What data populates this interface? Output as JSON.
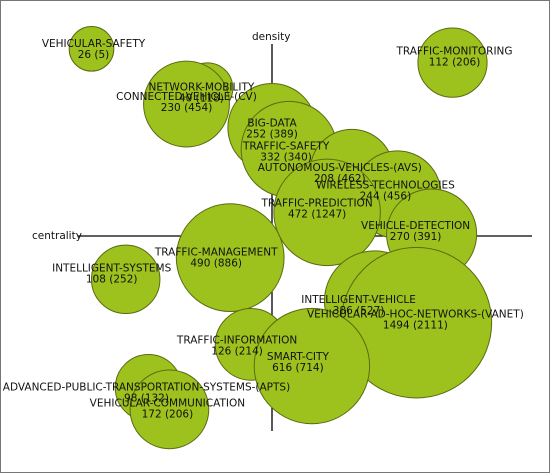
{
  "chart_data": {
    "type": "scatter",
    "subtype": "strategic-diagram-bubble",
    "x_axis_label": "centrality",
    "y_axis_label": "density",
    "bubble_color": "#9dc11d",
    "size_encodes": "documents",
    "points": [
      {
        "name": "VEHICULAR-SAFETY",
        "stats": "26 (5)",
        "docs": 26,
        "cx": -0.95,
        "cy": 0.95
      },
      {
        "name": "TRAFFIC-MONITORING",
        "stats": "112 (206)",
        "docs": 112,
        "cx": 0.95,
        "cy": 0.88
      },
      {
        "name": "NETWORK-MOBILITY",
        "stats": "40 (118)",
        "docs": 40,
        "cx": -0.34,
        "cy": 0.75
      },
      {
        "name": "CONNECTED-VEHICLE-(CV)",
        "stats": "230 (454)",
        "docs": 230,
        "cx": -0.45,
        "cy": 0.67
      },
      {
        "name": "BIG-DATA",
        "stats": "252 (389)",
        "docs": 252,
        "cx": 0.0,
        "cy": 0.55
      },
      {
        "name": "TRAFFIC-SAFETY",
        "stats": "332 (340)",
        "docs": 332,
        "cx": 0.09,
        "cy": 0.44
      },
      {
        "name": "AUTONOMOUS-VEHICLES-(AVS)",
        "stats": "208 (462)",
        "docs": 208,
        "cx": 0.42,
        "cy": 0.33
      },
      {
        "name": "WIRELESS-TECHNOLOGIES",
        "stats": "244 (456)",
        "docs": 244,
        "cx": 0.66,
        "cy": 0.21
      },
      {
        "name": "TRAFFIC-PREDICTION",
        "stats": "472 (1247)",
        "docs": 472,
        "cx": 0.29,
        "cy": 0.12
      },
      {
        "name": "VEHICLE-DETECTION",
        "stats": "270 (391)",
        "docs": 270,
        "cx": 0.84,
        "cy": 0.01
      },
      {
        "name": "TRAFFIC-MANAGEMENT",
        "stats": "490 (886)",
        "docs": 490,
        "cx": -0.22,
        "cy": -0.11
      },
      {
        "name": "INTELLIGENT-SYSTEMS",
        "stats": "108 (252)",
        "docs": 108,
        "cx": -0.77,
        "cy": -0.22
      },
      {
        "name": "INTELLIGENT-VEHICLE",
        "stats": "386 (527)",
        "docs": 386,
        "cx": 0.54,
        "cy": -0.33
      },
      {
        "name": "VEHICULAR-AD-HOC-NETWORKS-(VANET)",
        "stats": "1494 (2111)",
        "docs": 1494,
        "cx": 0.76,
        "cy": -0.44
      },
      {
        "name": "TRAFFIC-INFORMATION",
        "stats": "126 (214)",
        "docs": 126,
        "cx": -0.11,
        "cy": -0.55
      },
      {
        "name": "SMART-CITY",
        "stats": "616 (714)",
        "docs": 616,
        "cx": 0.21,
        "cy": -0.66
      },
      {
        "name": "ADVANCED-PUBLIC-TRANSPORTATION-SYSTEMS-(APTS)",
        "stats": "98 (132)",
        "docs": 98,
        "cx": -0.65,
        "cy": -0.77
      },
      {
        "name": "VEHICULAR-COMMUNICATION",
        "stats": "172 (206)",
        "docs": 172,
        "cx": -0.54,
        "cy": -0.88
      }
    ]
  }
}
